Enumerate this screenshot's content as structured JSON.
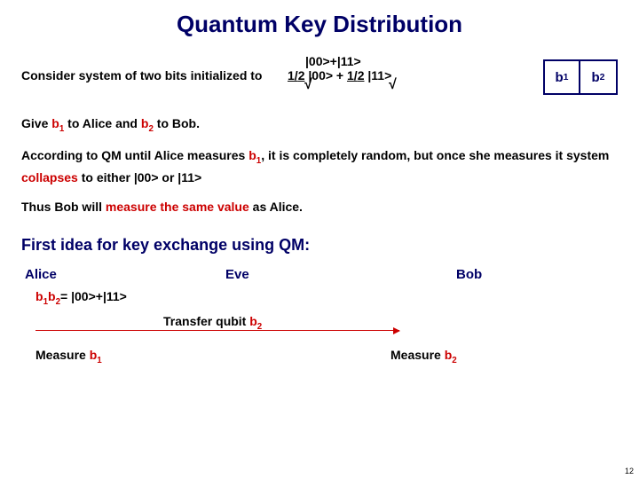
{
  "title": "Quantum Key Distribution",
  "colors": {
    "title": "#000066",
    "accent": "#cc0000",
    "navy": "#000066"
  },
  "intro": {
    "prefix": "Consider system of two bits initialized to ",
    "state_short": "|00>+|11>",
    "coeff1_num": "1/",
    "coeff_radicand": "2",
    "term1": " |00> + ",
    "coeff2_num": "1/",
    "term2": " |11>"
  },
  "bits": {
    "b1": "b",
    "b1_sub": "1",
    "b2": "b",
    "b2_sub": "2"
  },
  "p_give_pre": "Give ",
  "p_give_b1": "b",
  "p_give_mid1": " to Alice and ",
  "p_give_b2": "b",
  "p_give_mid2": " to Bob.",
  "p_qm_pre": "According to QM until Alice measures ",
  "p_qm_b1": "b",
  "p_qm_mid": ", it is completely random, but once she measures it system ",
  "p_qm_red": "collapses",
  "p_qm_post": " to either |00> or |11>",
  "p_bob_pre": "Thus Bob will ",
  "p_bob_red": "measure the same value",
  "p_bob_post": " as Alice.",
  "heading2": "First idea for key exchange using QM:",
  "cols": {
    "alice": "Alice",
    "eve": "Eve",
    "bob": "Bob"
  },
  "state_line_pre": "b",
  "state_line_sub1": "1",
  "state_line_b2": "b",
  "state_line_sub2": "2",
  "state_line_eq": "= |00>+|11>",
  "transfer_pre": "Transfer qubit ",
  "transfer_b": "b",
  "transfer_sub": "2",
  "measure1_pre": "Measure ",
  "measure1_b": "b",
  "measure1_sub": "1",
  "measure2_pre": "Measure ",
  "measure2_b": "b",
  "measure2_sub": "2",
  "page": "12"
}
